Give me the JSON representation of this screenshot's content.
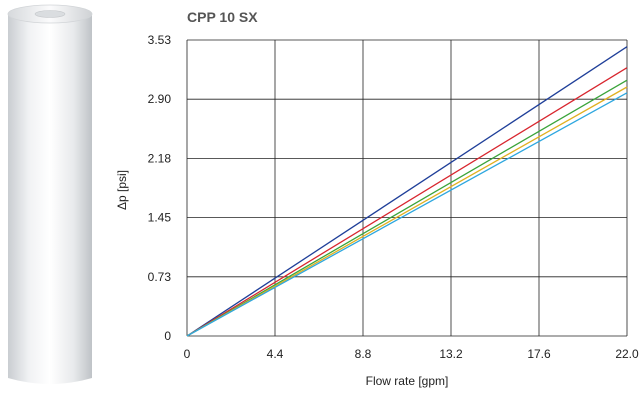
{
  "chart_data": {
    "type": "line",
    "title": "CPP 10 SX",
    "xlabel": "Flow rate [gpm]",
    "ylabel": "Δp [psi]",
    "xlim": [
      0,
      22.0
    ],
    "ylim": [
      0,
      3.53
    ],
    "x_ticks": [
      "0",
      "4.4",
      "8.8",
      "13.2",
      "17.6",
      "22.0"
    ],
    "y_ticks": [
      "0",
      "0.73",
      "1.45",
      "2.18",
      "2.90",
      "3.53"
    ],
    "grid": true,
    "legend": "none",
    "series": [
      {
        "color": "#1f3f99",
        "x": [
          0,
          22.0
        ],
        "y": [
          0,
          3.45
        ]
      },
      {
        "color": "#d8262e",
        "x": [
          0,
          22.0
        ],
        "y": [
          0,
          3.2
        ]
      },
      {
        "color": "#3aa43a",
        "x": [
          0,
          22.0
        ],
        "y": [
          0,
          3.05
        ]
      },
      {
        "color": "#e0b020",
        "x": [
          0,
          22.0
        ],
        "y": [
          0,
          2.97
        ]
      },
      {
        "color": "#2ea7df",
        "x": [
          0,
          22.0
        ],
        "y": [
          0,
          2.9
        ]
      }
    ]
  }
}
